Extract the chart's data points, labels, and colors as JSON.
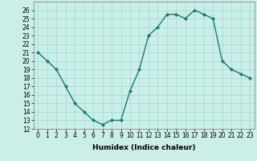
{
  "x": [
    0,
    1,
    2,
    3,
    4,
    5,
    6,
    7,
    8,
    9,
    10,
    11,
    12,
    13,
    14,
    15,
    16,
    17,
    18,
    19,
    20,
    21,
    22,
    23
  ],
  "y": [
    21,
    20,
    19,
    17,
    15,
    14,
    13,
    12.5,
    13,
    13,
    16.5,
    19,
    23,
    24,
    25.5,
    25.5,
    25,
    26,
    25.5,
    25,
    20,
    19,
    18.5,
    18
  ],
  "line_color": "#1a7a6e",
  "marker": "D",
  "marker_size": 2,
  "bg_color": "#cceee8",
  "grid_color": "#99ddcc",
  "xlabel": "Humidex (Indice chaleur)",
  "ylim": [
    12,
    27
  ],
  "xlim": [
    -0.5,
    23.5
  ],
  "yticks": [
    12,
    13,
    14,
    15,
    16,
    17,
    18,
    19,
    20,
    21,
    22,
    23,
    24,
    25,
    26
  ],
  "xticks": [
    0,
    1,
    2,
    3,
    4,
    5,
    6,
    7,
    8,
    9,
    10,
    11,
    12,
    13,
    14,
    15,
    16,
    17,
    18,
    19,
    20,
    21,
    22,
    23
  ],
  "tick_fontsize": 5.5,
  "xlabel_fontsize": 6.5,
  "linewidth": 1.0
}
